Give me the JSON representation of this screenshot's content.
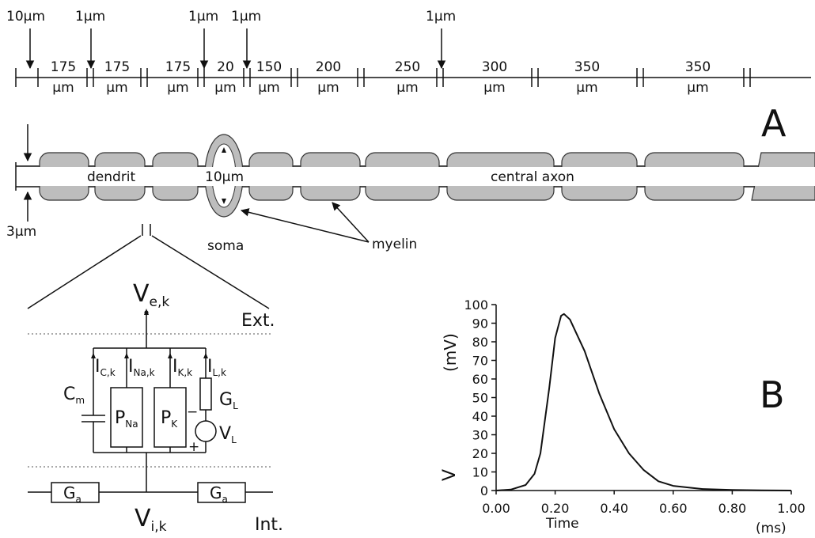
{
  "panel_a": {
    "label": "A",
    "scale_arrows": [
      "10µm",
      "1µm",
      "1µm",
      "1µm",
      "1µm"
    ],
    "segments": [
      {
        "length": "175",
        "unit": "µm"
      },
      {
        "length": "175",
        "unit": "µm"
      },
      {
        "length": "175",
        "unit": "µm"
      },
      {
        "length": "20",
        "unit": "µm"
      },
      {
        "length": "150",
        "unit": "µm"
      },
      {
        "length": "200",
        "unit": "µm"
      },
      {
        "length": "250",
        "unit": "µm"
      },
      {
        "length": "300",
        "unit": "µm"
      },
      {
        "length": "350",
        "unit": "µm"
      },
      {
        "length": "350",
        "unit": "µm"
      }
    ],
    "axon_diameter": "3µm",
    "dendrite": "dendrit",
    "soma_diameter": "10µm",
    "axon": "central axon",
    "soma": "soma",
    "myelin": "myelin"
  },
  "circuit": {
    "ve": {
      "main": "V",
      "sub": "e,k"
    },
    "ext": "Ext.",
    "int": "Int.",
    "currents": [
      {
        "main": "I",
        "sub": "C,k"
      },
      {
        "main": "I",
        "sub": "Na,k"
      },
      {
        "main": "I",
        "sub": "K,k"
      },
      {
        "main": "I",
        "sub": "L,k"
      }
    ],
    "cm": {
      "main": "C",
      "sub": "m"
    },
    "pna": {
      "main": "P",
      "sub": "Na"
    },
    "pk": {
      "main": "P",
      "sub": "K"
    },
    "gl": {
      "main": "G",
      "sub": "L"
    },
    "vl": {
      "main": "V",
      "sub": "L"
    },
    "minus": "−",
    "plus": "+",
    "ga": [
      {
        "main": "G",
        "sub": "a"
      },
      {
        "main": "G",
        "sub": "a"
      }
    ],
    "vi": {
      "main": "V",
      "sub": "i,k"
    }
  },
  "chart_data": {
    "type": "line",
    "label": "B",
    "x_label": "Time",
    "x_unit": "(ms)",
    "y_label": "V",
    "y_unit": "(mV)",
    "color": "#111111",
    "x": [
      0,
      0.05,
      0.1,
      0.13,
      0.15,
      0.18,
      0.2,
      0.22,
      0.23,
      0.25,
      0.3,
      0.35,
      0.4,
      0.45,
      0.5,
      0.55,
      0.6,
      0.7,
      0.8,
      0.9,
      1.0
    ],
    "values": [
      0,
      0.5,
      3,
      9,
      20,
      55,
      82,
      94,
      95,
      92,
      75,
      52,
      33,
      20,
      11,
      5,
      2.5,
      0.8,
      0.3,
      0.1,
      0
    ],
    "xlim": [
      0,
      1.0
    ],
    "ylim": [
      0,
      100
    ],
    "xticks": [
      {
        "value": 0,
        "label": "0.00"
      },
      {
        "value": 0.2,
        "label": "0.20"
      },
      {
        "value": 0.4,
        "label": "0.40"
      },
      {
        "value": 0.6,
        "label": "0.60"
      },
      {
        "value": 0.8,
        "label": "0.80"
      },
      {
        "value": 1.0,
        "label": "1.00"
      }
    ],
    "yticks": [
      0,
      10,
      20,
      30,
      40,
      50,
      60,
      70,
      80,
      90,
      100
    ]
  }
}
